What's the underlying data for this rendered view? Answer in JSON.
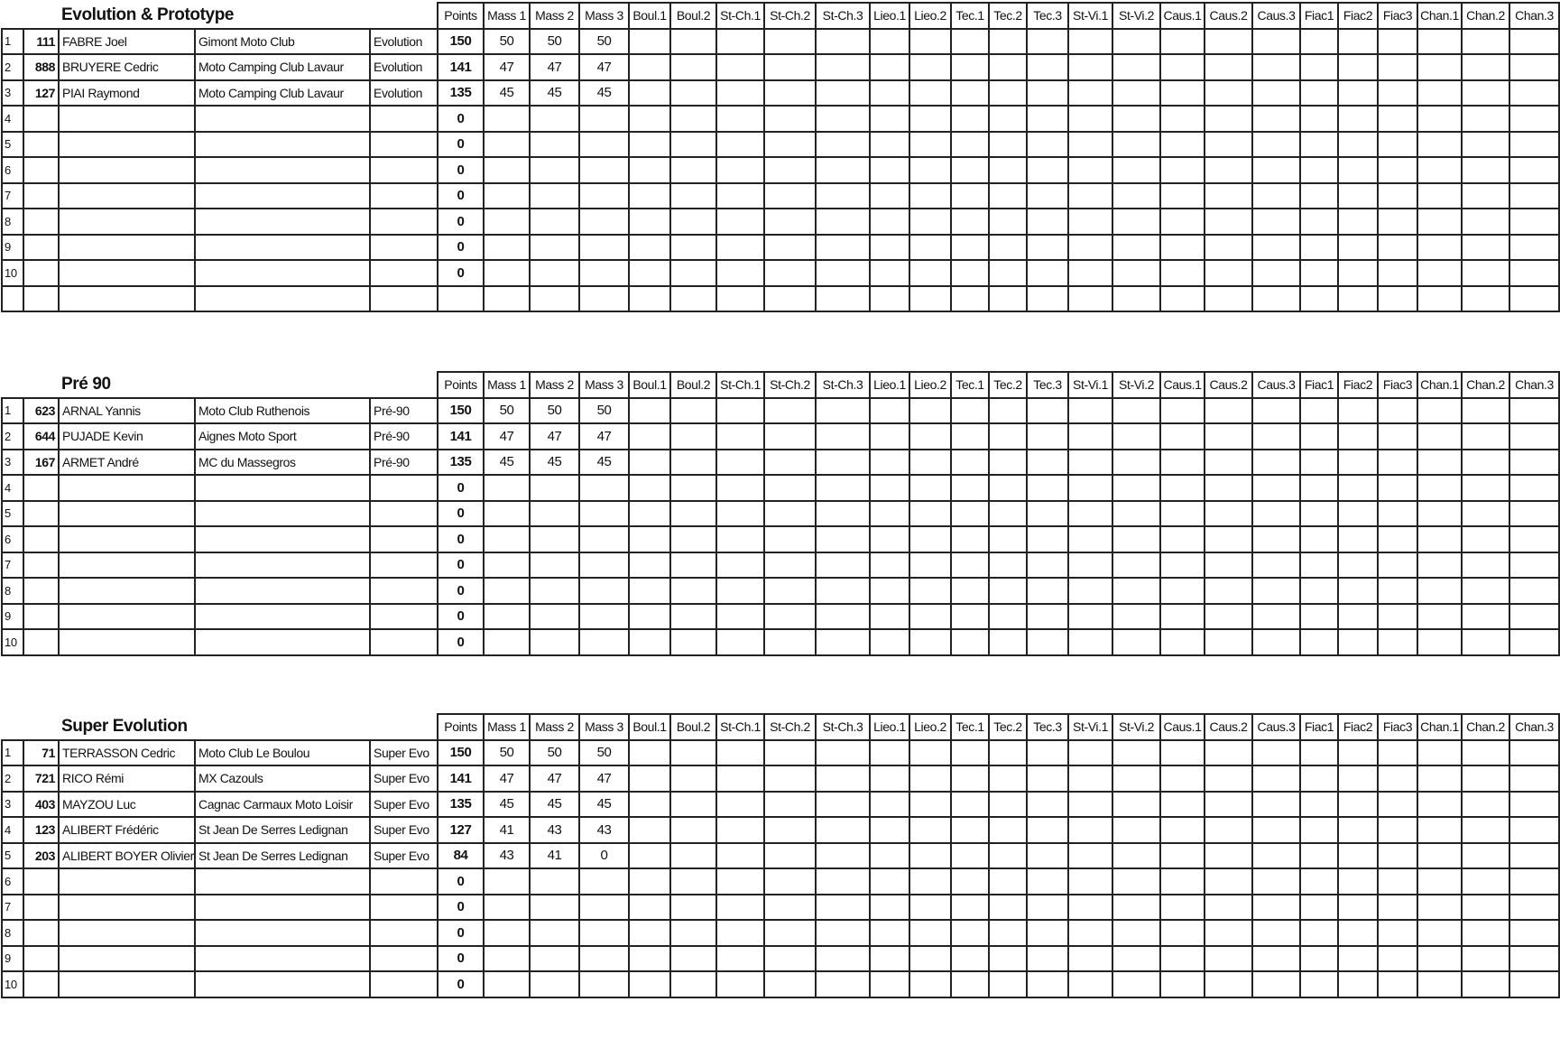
{
  "sections": [
    {
      "title": "Evolution & Prototype",
      "header": [
        "Points",
        "Mass 1",
        "Mass 2",
        "Mass 3",
        "Boul.1",
        "Boul.2",
        "St-Ch.1",
        "St-Ch.2",
        "St-Ch.3",
        "Lieo.1",
        "Lieo.2",
        "Tec.1",
        "Tec.2",
        "Tec.3",
        "St-Vi.1",
        "St-Vi.2",
        "Caus.1",
        "Caus.2",
        "Caus.3",
        "Fiac1",
        "Fiac2",
        "Fiac3",
        "Chan.1",
        "Chan.2",
        "Chan.3"
      ],
      "rows": [
        {
          "rank": 1,
          "number": 111,
          "name": "FABRE Joel",
          "club": "Gimont Moto Club",
          "category": "Evolution",
          "points": 150,
          "scores": [
            50,
            50,
            50
          ]
        },
        {
          "rank": 2,
          "number": 888,
          "name": "BRUYERE Cedric",
          "club": "Moto Camping Club Lavaur",
          "category": "Evolution",
          "points": 141,
          "scores": [
            47,
            47,
            47
          ]
        },
        {
          "rank": 3,
          "number": 127,
          "name": "PIAI Raymond",
          "club": "Moto Camping Club Lavaur",
          "category": "Evolution",
          "points": 135,
          "scores": [
            45,
            45,
            45
          ]
        },
        {
          "rank": 4,
          "points": 0
        },
        {
          "rank": 5,
          "points": 0
        },
        {
          "rank": 6,
          "points": 0
        },
        {
          "rank": 7,
          "points": 0
        },
        {
          "rank": 8,
          "points": 0
        },
        {
          "rank": 9,
          "points": 0
        },
        {
          "rank": 10,
          "points": 0
        },
        {}
      ]
    },
    {
      "title": "Pré 90",
      "header": [
        "Points",
        "Mass 1",
        "Mass 2",
        "Mass 3",
        "Boul.1",
        "Boul.2",
        "St-Ch.1",
        "St-Ch.2",
        "St-Ch.3",
        "Lieo.1",
        "Lieo.2",
        "Tec.1",
        "Tec.2",
        "Tec.3",
        "St-Vi.1",
        "St-Vi.2",
        "Caus.1",
        "Caus.2",
        "Caus.3",
        "Fiac1",
        "Fiac2",
        "Fiac3",
        "Chan.1",
        "Chan.2",
        "Chan.3"
      ],
      "rows": [
        {
          "rank": 1,
          "number": 623,
          "name": "ARNAL Yannis",
          "club": "Moto Club Ruthenois",
          "category": "Pré-90",
          "points": 150,
          "scores": [
            50,
            50,
            50
          ]
        },
        {
          "rank": 2,
          "number": 644,
          "name": "PUJADE Kevin",
          "club": "Aignes Moto Sport",
          "category": "Pré-90",
          "points": 141,
          "scores": [
            47,
            47,
            47
          ]
        },
        {
          "rank": 3,
          "number": 167,
          "name": "ARMET André",
          "club": "MC du Massegros",
          "category": "Pré-90",
          "points": 135,
          "scores": [
            45,
            45,
            45
          ]
        },
        {
          "rank": 4,
          "points": 0
        },
        {
          "rank": 5,
          "points": 0
        },
        {
          "rank": 6,
          "points": 0
        },
        {
          "rank": 7,
          "points": 0
        },
        {
          "rank": 8,
          "points": 0
        },
        {
          "rank": 9,
          "points": 0
        },
        {
          "rank": 10,
          "points": 0
        }
      ]
    },
    {
      "title": "Super Evolution",
      "header": [
        "Points",
        "Mass 1",
        "Mass 2",
        "Mass 3",
        "Boul.1",
        "Boul.2",
        "St-Ch.1",
        "St-Ch.2",
        "St-Ch.3",
        "Lieo.1",
        "Lieo.2",
        "Tec.1",
        "Tec.2",
        "Tec.3",
        "St-Vi.1",
        "St-Vi.2",
        "Caus.1",
        "Caus.2",
        "Caus.3",
        "Fiac1",
        "Fiac2",
        "Fiac3",
        "Chan.1",
        "Chan.2",
        "Chan.3"
      ],
      "rows": [
        {
          "rank": 1,
          "number": 71,
          "name": "TERRASSON Cedric",
          "club": "Moto Club Le Boulou",
          "category": "Super Evo",
          "points": 150,
          "scores": [
            50,
            50,
            50
          ]
        },
        {
          "rank": 2,
          "number": 721,
          "name": "RICO Rémi",
          "club": "MX Cazouls",
          "category": "Super Evo",
          "points": 141,
          "scores": [
            47,
            47,
            47
          ]
        },
        {
          "rank": 3,
          "number": 403,
          "name": "MAYZOU Luc",
          "club": "Cagnac Carmaux Moto Loisir",
          "category": "Super Evo",
          "points": 135,
          "scores": [
            45,
            45,
            45
          ]
        },
        {
          "rank": 4,
          "number": 123,
          "name": "ALIBERT Frédéric",
          "club": "St Jean De Serres Ledignan",
          "category": "Super Evo",
          "points": 127,
          "scores": [
            41,
            43,
            43
          ]
        },
        {
          "rank": 5,
          "number": 203,
          "name": "ALIBERT BOYER Olivier",
          "club": "St Jean De Serres Ledignan",
          "category": "Super Evo",
          "points": 84,
          "scores": [
            43,
            41,
            0
          ]
        },
        {
          "rank": 6,
          "points": 0
        },
        {
          "rank": 7,
          "points": 0
        },
        {
          "rank": 8,
          "points": 0
        },
        {
          "rank": 9,
          "points": 0
        },
        {
          "rank": 10,
          "points": 0
        }
      ]
    }
  ]
}
